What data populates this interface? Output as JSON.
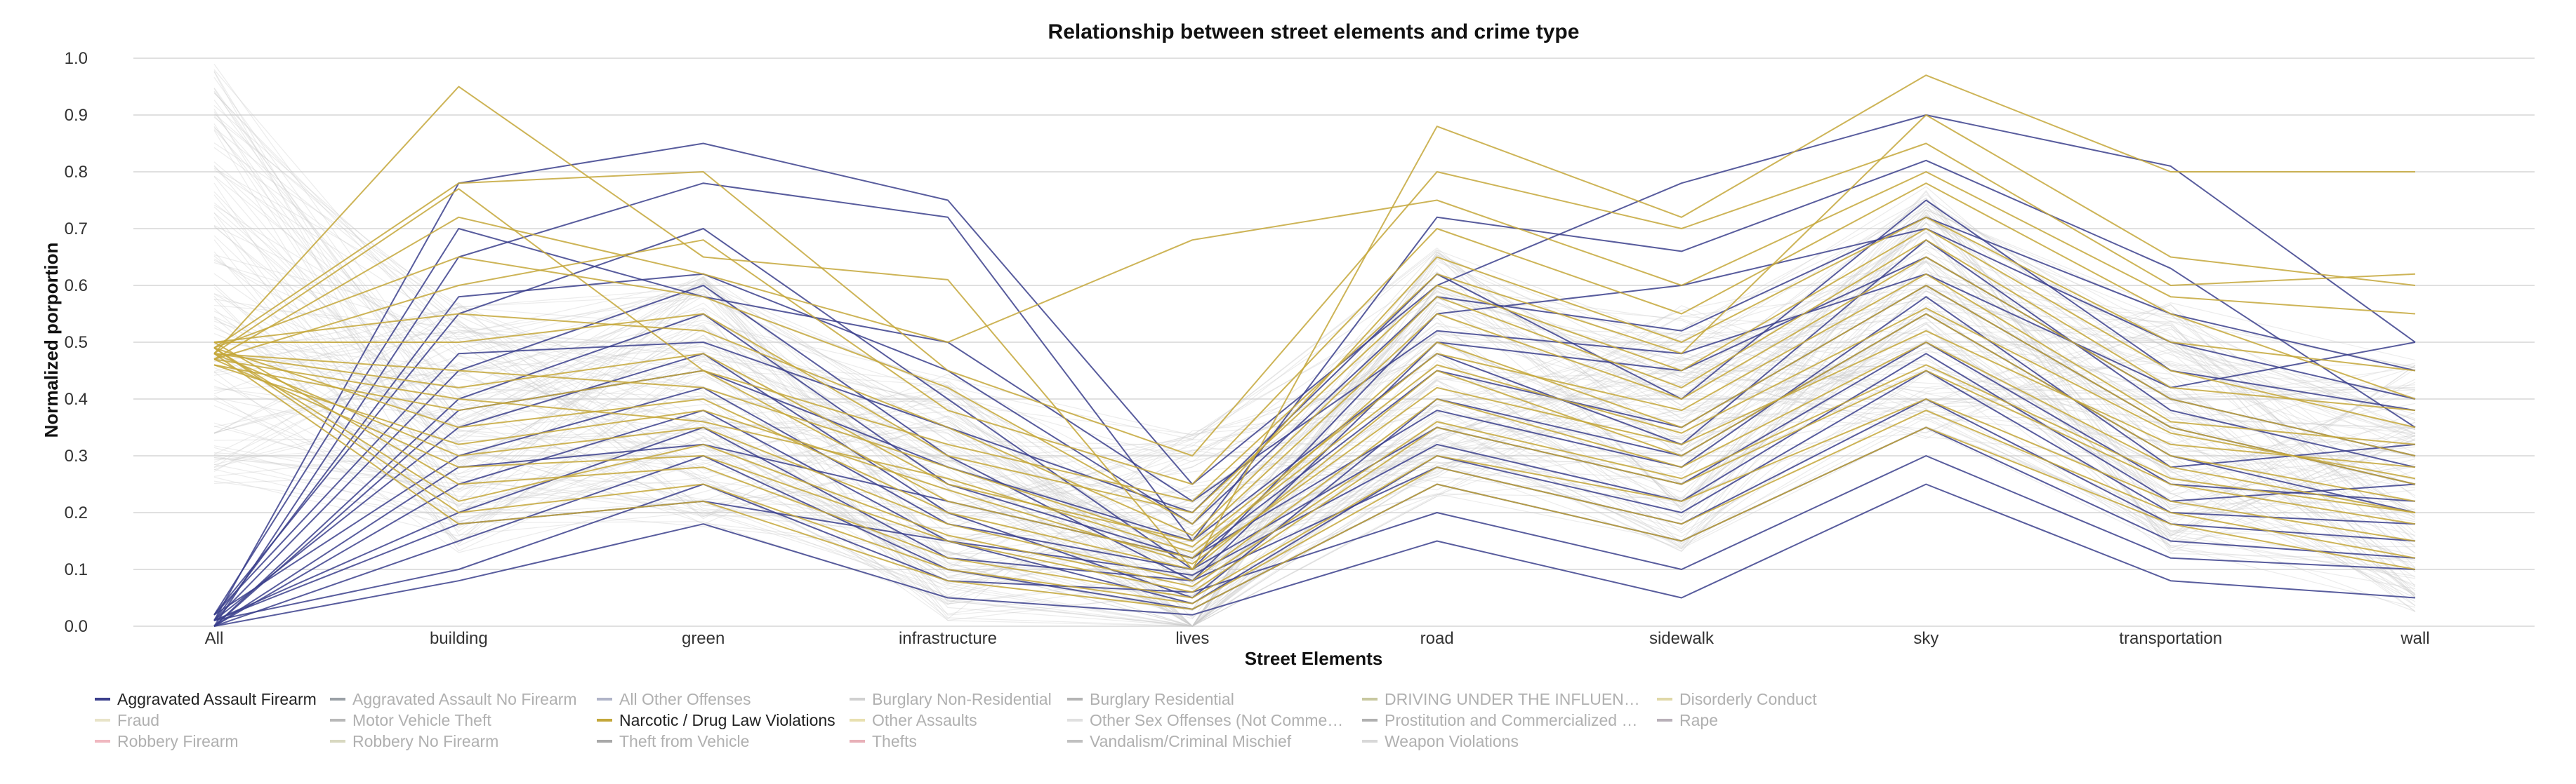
{
  "chart_data": {
    "type": "line",
    "subtype": "parallel-coordinates",
    "title": "Relationship between street elements and crime type",
    "xlabel": "Street Elements",
    "ylabel": "Normalized porportion",
    "ylim": [
      0,
      1
    ],
    "yticks": [
      0.0,
      0.1,
      0.2,
      0.3,
      0.4,
      0.5,
      0.6,
      0.7,
      0.8,
      0.9,
      1.0
    ],
    "ytick_labels": [
      "0.0",
      "0.1",
      "0.2",
      "0.3",
      "0.4",
      "0.5",
      "0.6",
      "0.7",
      "0.8",
      "0.9",
      "1.0"
    ],
    "categories": [
      "All",
      "building",
      "green",
      "infrastructure",
      "lives",
      "road",
      "sidewalk",
      "sky",
      "transportation",
      "wall"
    ],
    "grid": true,
    "legend_position": "bottom",
    "colors": {
      "highlight_a": "#3b3f8c",
      "highlight_b": "#c4a73a",
      "background": "#c8c8c8",
      "grid": "#e0e0e0"
    },
    "series": [
      {
        "name": "Aggravated Assault Firearm",
        "color": "#3b3f8c",
        "active": true,
        "lines": [
          [
            0.01,
            0.78,
            0.85,
            0.75,
            0.25,
            0.6,
            0.78,
            0.9,
            0.81,
            0.5
          ],
          [
            0.0,
            0.65,
            0.78,
            0.72,
            0.15,
            0.72,
            0.66,
            0.82,
            0.63,
            0.35
          ],
          [
            0.02,
            0.55,
            0.7,
            0.4,
            0.1,
            0.55,
            0.6,
            0.7,
            0.5,
            0.4
          ],
          [
            0.01,
            0.45,
            0.6,
            0.3,
            0.08,
            0.5,
            0.45,
            0.65,
            0.4,
            0.3
          ],
          [
            0.0,
            0.4,
            0.55,
            0.25,
            0.12,
            0.45,
            0.35,
            0.6,
            0.35,
            0.25
          ],
          [
            0.01,
            0.35,
            0.48,
            0.2,
            0.05,
            0.4,
            0.3,
            0.55,
            0.3,
            0.2
          ],
          [
            0.02,
            0.3,
            0.42,
            0.18,
            0.1,
            0.35,
            0.25,
            0.5,
            0.25,
            0.22
          ],
          [
            0.0,
            0.25,
            0.38,
            0.15,
            0.04,
            0.3,
            0.2,
            0.45,
            0.2,
            0.18
          ],
          [
            0.01,
            0.2,
            0.35,
            0.12,
            0.08,
            0.28,
            0.18,
            0.4,
            0.18,
            0.15
          ],
          [
            0.0,
            0.15,
            0.3,
            0.1,
            0.03,
            0.25,
            0.15,
            0.35,
            0.15,
            0.12
          ],
          [
            0.01,
            0.1,
            0.25,
            0.08,
            0.06,
            0.2,
            0.1,
            0.3,
            0.12,
            0.1
          ],
          [
            0.02,
            0.48,
            0.5,
            0.35,
            0.2,
            0.62,
            0.4,
            0.75,
            0.45,
            0.38
          ],
          [
            0.0,
            0.38,
            0.45,
            0.28,
            0.15,
            0.48,
            0.32,
            0.68,
            0.38,
            0.28
          ],
          [
            0.01,
            0.58,
            0.62,
            0.45,
            0.18,
            0.58,
            0.52,
            0.72,
            0.55,
            0.45
          ],
          [
            0.0,
            0.28,
            0.32,
            0.22,
            0.12,
            0.38,
            0.28,
            0.58,
            0.28,
            0.32
          ],
          [
            0.01,
            0.18,
            0.22,
            0.15,
            0.09,
            0.32,
            0.22,
            0.48,
            0.22,
            0.25
          ],
          [
            0.02,
            0.7,
            0.58,
            0.5,
            0.22,
            0.52,
            0.48,
            0.62,
            0.42,
            0.5
          ],
          [
            0.0,
            0.08,
            0.18,
            0.05,
            0.02,
            0.15,
            0.05,
            0.25,
            0.08,
            0.05
          ]
        ]
      },
      {
        "name": "Narcotic / Drug Law Violations",
        "color": "#c4a73a",
        "active": true,
        "lines": [
          [
            0.48,
            0.95,
            0.65,
            0.61,
            0.1,
            0.88,
            0.72,
            0.97,
            0.8,
            0.8
          ],
          [
            0.49,
            0.78,
            0.8,
            0.45,
            0.3,
            0.8,
            0.7,
            0.85,
            0.6,
            0.62
          ],
          [
            0.47,
            0.6,
            0.68,
            0.38,
            0.25,
            0.7,
            0.55,
            0.78,
            0.55,
            0.4
          ],
          [
            0.5,
            0.5,
            0.55,
            0.3,
            0.2,
            0.6,
            0.45,
            0.7,
            0.45,
            0.35
          ],
          [
            0.48,
            0.42,
            0.48,
            0.25,
            0.15,
            0.55,
            0.4,
            0.65,
            0.4,
            0.3
          ],
          [
            0.46,
            0.38,
            0.45,
            0.22,
            0.12,
            0.5,
            0.35,
            0.6,
            0.35,
            0.25
          ],
          [
            0.49,
            0.35,
            0.4,
            0.2,
            0.1,
            0.45,
            0.3,
            0.55,
            0.3,
            0.22
          ],
          [
            0.48,
            0.3,
            0.35,
            0.18,
            0.08,
            0.4,
            0.28,
            0.5,
            0.28,
            0.2
          ],
          [
            0.47,
            0.28,
            0.3,
            0.15,
            0.06,
            0.35,
            0.25,
            0.45,
            0.25,
            0.18
          ],
          [
            0.5,
            0.25,
            0.28,
            0.12,
            0.05,
            0.3,
            0.22,
            0.4,
            0.22,
            0.15
          ],
          [
            0.49,
            0.2,
            0.25,
            0.1,
            0.04,
            0.28,
            0.18,
            0.38,
            0.2,
            0.12
          ],
          [
            0.48,
            0.18,
            0.22,
            0.08,
            0.03,
            0.25,
            0.15,
            0.35,
            0.18,
            0.1
          ],
          [
            0.47,
            0.72,
            0.62,
            0.5,
            0.68,
            0.75,
            0.6,
            0.8,
            0.58,
            0.55
          ],
          [
            0.49,
            0.65,
            0.58,
            0.42,
            0.18,
            0.65,
            0.5,
            0.72,
            0.5,
            0.45
          ],
          [
            0.5,
            0.55,
            0.52,
            0.35,
            0.16,
            0.58,
            0.42,
            0.68,
            0.42,
            0.38
          ],
          [
            0.48,
            0.45,
            0.42,
            0.28,
            0.14,
            0.48,
            0.38,
            0.62,
            0.36,
            0.32
          ],
          [
            0.46,
            0.32,
            0.38,
            0.24,
            0.11,
            0.42,
            0.32,
            0.52,
            0.32,
            0.28
          ],
          [
            0.49,
            0.22,
            0.32,
            0.16,
            0.07,
            0.36,
            0.26,
            0.46,
            0.26,
            0.2
          ],
          [
            0.48,
            0.77,
            0.45,
            0.32,
            0.22,
            0.62,
            0.48,
            0.9,
            0.65,
            0.6
          ],
          [
            0.47,
            0.4,
            0.36,
            0.26,
            0.13,
            0.46,
            0.34,
            0.56,
            0.34,
            0.26
          ]
        ]
      },
      {
        "name": "Aggravated Assault No Firearm",
        "color": "#9aa0a6",
        "active": false
      },
      {
        "name": "All Other Offenses",
        "color": "#b0b4c8",
        "active": false
      },
      {
        "name": "Burglary Non-Residential",
        "color": "#d0d0d0",
        "active": false
      },
      {
        "name": "Burglary Residential",
        "color": "#b4b4b4",
        "active": false
      },
      {
        "name": "DRIVING UNDER THE INFLUEN…",
        "color": "#c8c8a0",
        "active": false
      },
      {
        "name": "Disorderly Conduct",
        "color": "#e0d8a8",
        "active": false
      },
      {
        "name": "Fraud",
        "color": "#e8e4c8",
        "active": false
      },
      {
        "name": "Motor Vehicle Theft",
        "color": "#b8b8b8",
        "active": false
      },
      {
        "name": "Other Assaults",
        "color": "#e8e0b0",
        "active": false
      },
      {
        "name": "Other Sex Offenses (Not Comme…",
        "color": "#e0e0e0",
        "active": false
      },
      {
        "name": "Prostitution and Commercialized …",
        "color": "#b0b0b0",
        "active": false
      },
      {
        "name": "Rape",
        "color": "#b8b0b8",
        "active": false
      },
      {
        "name": "Robbery Firearm",
        "color": "#f0b8c0",
        "active": false
      },
      {
        "name": "Robbery No Firearm",
        "color": "#d8d8c0",
        "active": false
      },
      {
        "name": "Theft from Vehicle",
        "color": "#a8a8a8",
        "active": false
      },
      {
        "name": "Thefts",
        "color": "#e8b0b8",
        "active": false
      },
      {
        "name": "Vandalism/Criminal Mischief",
        "color": "#c0c0c0",
        "active": false
      },
      {
        "name": "Weapon Violations",
        "color": "#d8d8d8",
        "active": false
      }
    ],
    "legend_layout": [
      [
        "Aggravated Assault Firearm",
        "Aggravated Assault No Firearm",
        "All Other Offenses",
        "Burglary Non-Residential",
        "Burglary Residential",
        "DRIVING UNDER THE INFLUEN…",
        "Disorderly Conduct"
      ],
      [
        "Fraud",
        "Motor Vehicle Theft",
        "Narcotic / Drug Law Violations",
        "Other Assaults",
        "Other Sex Offenses (Not Comme…",
        "Prostitution and Commercialized …",
        "Rape"
      ],
      [
        "Robbery Firearm",
        "Robbery No Firearm",
        "Theft from Vehicle",
        "Thefts",
        "Vandalism/Criminal Mischief",
        "Weapon Violations"
      ]
    ]
  }
}
